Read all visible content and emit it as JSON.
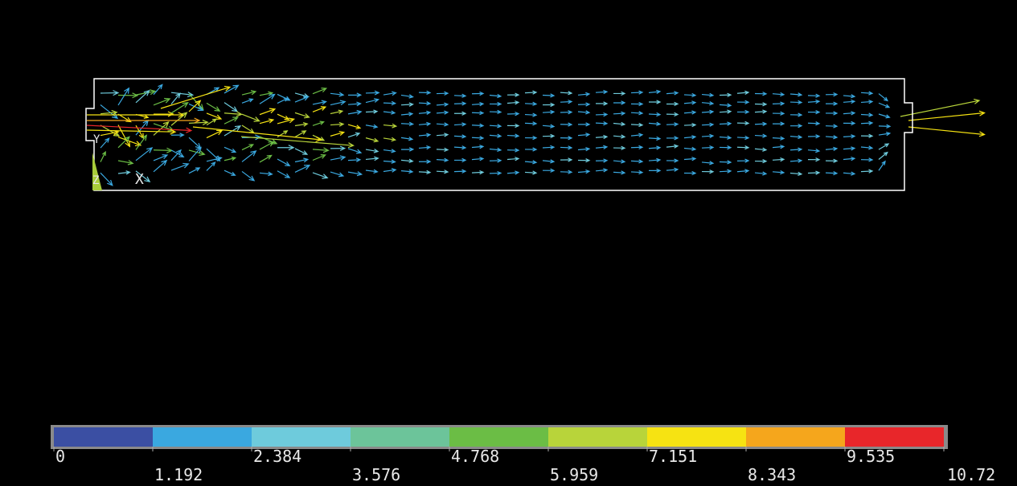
{
  "legend": {
    "ticks": [
      "0",
      "1.192",
      "2.384",
      "3.576",
      "4.768",
      "5.959",
      "7.151",
      "8.343",
      "9.535",
      "10.72"
    ],
    "colors": [
      "#3b4fa3",
      "#3aa8e0",
      "#6ecbdc",
      "#6cc49a",
      "#6bbd45",
      "#b8d43a",
      "#f6e312",
      "#f5a61c",
      "#e8262a"
    ]
  },
  "triad": {
    "x": "X",
    "y": "Y",
    "z": "Z"
  }
}
